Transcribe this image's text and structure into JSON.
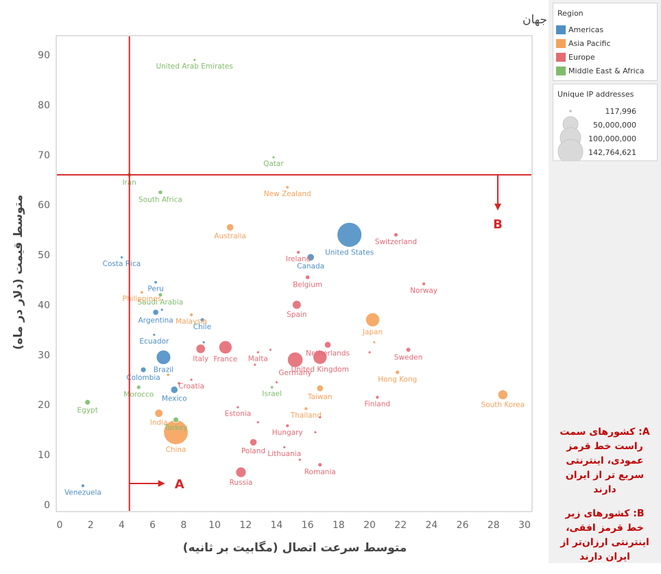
{
  "chart_data": {
    "type": "scatter",
    "title": "مقایسه‌ی سرعت و قیمت اینترنت کشورهای جهان",
    "xlabel": "متوسط سرعت اتصال (مگابیت بر ثانیه)",
    "ylabel": "متوسط قیمت (دلار در ماه)",
    "xlim": [
      0,
      30
    ],
    "ylim": [
      0,
      90
    ],
    "xticks": [
      "0",
      "2",
      "4",
      "6",
      "8",
      "10",
      "12",
      "14",
      "16",
      "18",
      "20",
      "22",
      "24",
      "26",
      "28",
      "30"
    ],
    "yticks": [
      "0",
      "10",
      "20",
      "30",
      "40",
      "50",
      "60",
      "70",
      "80",
      "90"
    ],
    "grid": "none",
    "series": [
      {
        "name": "Americas",
        "color": "#4e8fc4",
        "points": [
          {
            "label": "United States",
            "x": 18.7,
            "y": 54.0,
            "ip": 142000000
          },
          {
            "label": "Canada",
            "x": 16.2,
            "y": 49.5,
            "ip": 12000000
          },
          {
            "label": "Brazil",
            "x": 6.7,
            "y": 29.5,
            "ip": 48000000
          },
          {
            "label": "Mexico",
            "x": 7.4,
            "y": 23.0,
            "ip": 12000000
          },
          {
            "label": "Argentina",
            "x": 6.2,
            "y": 38.5,
            "ip": 8000000
          },
          {
            "label": "Chile",
            "x": 9.2,
            "y": 37.0,
            "ip": 3000000
          },
          {
            "label": "Colombia",
            "x": 5.4,
            "y": 27.0,
            "ip": 7000000
          },
          {
            "label": "Peru",
            "x": 6.2,
            "y": 44.5,
            "ip": 1500000
          },
          {
            "label": "Ecuador",
            "x": 6.1,
            "y": 34.0,
            "ip": 400000
          },
          {
            "label": "Costa Rica",
            "x": 4.0,
            "y": 49.5,
            "ip": 300000
          },
          {
            "label": "Venezuela",
            "x": 1.5,
            "y": 3.8,
            "ip": 2000000
          },
          {
            "label": "",
            "x": 6.6,
            "y": 39.0,
            "ip": 200000
          },
          {
            "label": "",
            "x": 9.3,
            "y": 32.5,
            "ip": 500000
          }
        ]
      },
      {
        "name": "Asia Pacific",
        "color": "#f5a25b",
        "points": [
          {
            "label": "China",
            "x": 7.5,
            "y": 14.5,
            "ip": 140000000
          },
          {
            "label": "Japan",
            "x": 20.2,
            "y": 37.0,
            "ip": 45000000
          },
          {
            "label": "South Korea",
            "x": 28.6,
            "y": 22.0,
            "ip": 22000000
          },
          {
            "label": "Australia",
            "x": 11.0,
            "y": 55.5,
            "ip": 12000000
          },
          {
            "label": "New Zealand",
            "x": 14.7,
            "y": 63.5,
            "ip": 1500000
          },
          {
            "label": "Malaysia",
            "x": 8.5,
            "y": 38.0,
            "ip": 2000000
          },
          {
            "label": "Philippines",
            "x": 5.3,
            "y": 42.5,
            "ip": 1500000
          },
          {
            "label": "India",
            "x": 6.4,
            "y": 18.3,
            "ip": 15000000
          },
          {
            "label": "Taiwan",
            "x": 16.8,
            "y": 23.3,
            "ip": 10000000
          },
          {
            "label": "Thailand",
            "x": 15.9,
            "y": 19.2,
            "ip": 2000000
          },
          {
            "label": "Hong Kong",
            "x": 21.8,
            "y": 26.5,
            "ip": 3000000
          },
          {
            "label": "",
            "x": 7.0,
            "y": 26.0,
            "ip": 1500000
          },
          {
            "label": "",
            "x": 20.3,
            "y": 32.5,
            "ip": 800000
          }
        ]
      },
      {
        "name": "Europe",
        "color": "#e46a73",
        "points": [
          {
            "label": "Switzerland",
            "x": 21.7,
            "y": 54.0,
            "ip": 3000000
          },
          {
            "label": "Ireland",
            "x": 15.4,
            "y": 50.5,
            "ip": 2000000
          },
          {
            "label": "Norway",
            "x": 23.5,
            "y": 44.2,
            "ip": 2000000
          },
          {
            "label": "Belgium",
            "x": 16.0,
            "y": 45.5,
            "ip": 4500000
          },
          {
            "label": "Spain",
            "x": 15.3,
            "y": 40.0,
            "ip": 18000000
          },
          {
            "label": "Netherlands",
            "x": 17.3,
            "y": 32.0,
            "ip": 10000000
          },
          {
            "label": "United Kingdom",
            "x": 16.8,
            "y": 29.5,
            "ip": 45000000
          },
          {
            "label": "Germany",
            "x": 15.2,
            "y": 29.0,
            "ip": 55000000
          },
          {
            "label": "France",
            "x": 10.7,
            "y": 31.5,
            "ip": 40000000
          },
          {
            "label": "Italy",
            "x": 9.1,
            "y": 31.2,
            "ip": 20000000
          },
          {
            "label": "Malta",
            "x": 12.8,
            "y": 30.5,
            "ip": 500000
          },
          {
            "label": "Sweden",
            "x": 22.5,
            "y": 31.0,
            "ip": 5000000
          },
          {
            "label": "Croatia",
            "x": 8.5,
            "y": 25.0,
            "ip": 700000
          },
          {
            "label": "Finland",
            "x": 20.5,
            "y": 21.5,
            "ip": 2000000
          },
          {
            "label": "Estonia",
            "x": 11.5,
            "y": 19.5,
            "ip": 400000
          },
          {
            "label": "Hungary",
            "x": 14.7,
            "y": 15.8,
            "ip": 2000000
          },
          {
            "label": "Poland",
            "x": 12.5,
            "y": 12.5,
            "ip": 12000000
          },
          {
            "label": "Lithuania",
            "x": 14.5,
            "y": 11.5,
            "ip": 700000
          },
          {
            "label": "Romania",
            "x": 16.8,
            "y": 8.0,
            "ip": 4000000
          },
          {
            "label": "Russia",
            "x": 11.7,
            "y": 6.5,
            "ip": 25000000
          },
          {
            "label": "",
            "x": 13.6,
            "y": 31.0,
            "ip": 300000
          },
          {
            "label": "",
            "x": 12.6,
            "y": 28.0,
            "ip": 200000
          },
          {
            "label": "",
            "x": 7.7,
            "y": 24.3,
            "ip": 1500000
          },
          {
            "label": "",
            "x": 14.0,
            "y": 24.5,
            "ip": 800000
          },
          {
            "label": "",
            "x": 12.8,
            "y": 16.5,
            "ip": 500000
          },
          {
            "label": "",
            "x": 16.5,
            "y": 14.5,
            "ip": 300000
          },
          {
            "label": "",
            "x": 15.5,
            "y": 9.0,
            "ip": 600000
          },
          {
            "label": "",
            "x": 16.8,
            "y": 17.5,
            "ip": 600000
          },
          {
            "label": "",
            "x": 20.0,
            "y": 30.5,
            "ip": 1000000
          }
        ]
      },
      {
        "name": "Middle East & Africa",
        "color": "#7fbc6c",
        "points": [
          {
            "label": "United Arab Emirates",
            "x": 8.7,
            "y": 89.0,
            "ip": 1000000
          },
          {
            "label": "Qatar",
            "x": 13.8,
            "y": 69.5,
            "ip": 200000
          },
          {
            "label": "Iran",
            "x": 4.5,
            "y": 66.0,
            "ip": 5000000
          },
          {
            "label": "South Africa",
            "x": 6.5,
            "y": 62.5,
            "ip": 4500000
          },
          {
            "label": "Saudi Arabia",
            "x": 6.5,
            "y": 42.0,
            "ip": 4000000
          },
          {
            "label": "Israel",
            "x": 13.7,
            "y": 23.5,
            "ip": 1500000
          },
          {
            "label": "Morocco",
            "x": 5.1,
            "y": 23.5,
            "ip": 4000000
          },
          {
            "label": "Egypt",
            "x": 1.8,
            "y": 20.5,
            "ip": 7000000
          },
          {
            "label": "Turkey",
            "x": 7.5,
            "y": 17.0,
            "ip": 7000000
          }
        ]
      }
    ],
    "reference_lines": [
      {
        "axis": "x",
        "value": 4.5,
        "label": "A"
      },
      {
        "axis": "y",
        "value": 66.0,
        "label": "B"
      }
    ]
  },
  "legend": {
    "region_title": "Region",
    "regions": [
      {
        "label": "Americas",
        "color": "#4e8fc4"
      },
      {
        "label": "Asia Pacific",
        "color": "#f5a25b"
      },
      {
        "label": "Europe",
        "color": "#e46a73"
      },
      {
        "label": "Middle East & Africa",
        "color": "#7fbc6c"
      }
    ],
    "size_title": "Unique IP addresses",
    "sizes": [
      {
        "label": "117,996",
        "value": 117996
      },
      {
        "label": "50,000,000",
        "value": 50000000
      },
      {
        "label": "100,000,000",
        "value": 100000000
      },
      {
        "label": "142,764,621",
        "value": 142764621
      }
    ]
  },
  "notes": {
    "a": "A: کشورهای سمت راست خط قرمز عمودی، اینترنتی سریع تر از ایران دارند",
    "b": "B: کشورهای زیر خط قرمز افقی، اینترنتی ارزان‌تر از ایران دارند"
  },
  "colors": {
    "reference_line": "#d62728",
    "axis_text": "#666666"
  }
}
